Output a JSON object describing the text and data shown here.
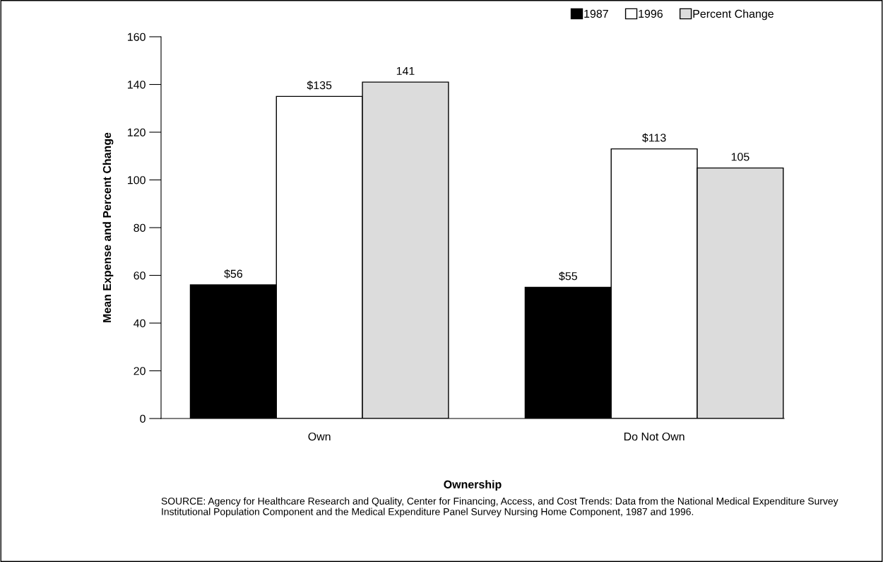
{
  "chart_data": {
    "type": "bar",
    "xlabel": "Ownership",
    "ylabel": "Mean Expense and Percent Change",
    "categories": [
      "Own",
      "Do Not Own"
    ],
    "series": [
      {
        "name": "1987",
        "color": "#000000",
        "values": [
          56,
          55
        ],
        "value_labels": [
          "$56",
          "$55"
        ]
      },
      {
        "name": "1996",
        "color": "#ffffff",
        "values": [
          135,
          113
        ],
        "value_labels": [
          "$135",
          "$113"
        ]
      },
      {
        "name": "Percent Change",
        "color": "#dcdcdc",
        "values": [
          141,
          105
        ],
        "value_labels": [
          "141",
          "105"
        ]
      }
    ],
    "ylim": [
      0,
      160
    ],
    "yticks": [
      0,
      20,
      40,
      60,
      80,
      100,
      120,
      140,
      160
    ],
    "grid": false,
    "legend": "top right",
    "annotations": [
      "SOURCE: Agency for Healthcare Research and Quality, Center for Financing, Access, and Cost Trends: Data from the National Medical Expenditure Survey Institutional Population Component and the Medical Expenditure Panel Survey Nursing Home Component, 1987 and 1996."
    ]
  }
}
